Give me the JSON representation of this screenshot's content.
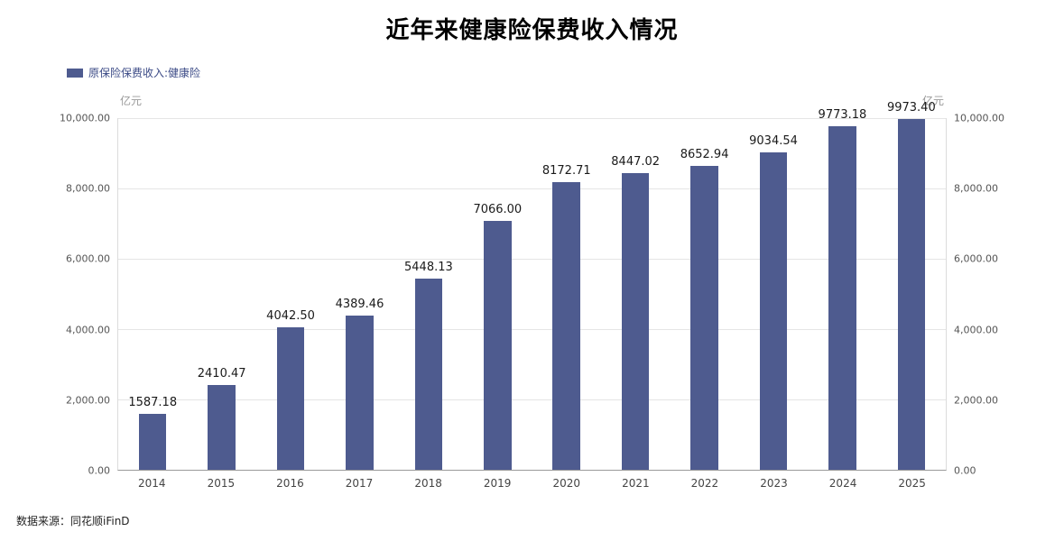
{
  "title": "近年来健康险保费收入情况",
  "legend": {
    "label": "原保险保费收入:健康险",
    "swatch_color": "#4e5b8f"
  },
  "axes": {
    "unit_left": "亿元",
    "unit_right": "亿元"
  },
  "source": "数据来源：同花顺iFinD",
  "chart_data": {
    "type": "bar",
    "title": "近年来健康险保费收入情况",
    "categories": [
      "2014",
      "2015",
      "2016",
      "2017",
      "2018",
      "2019",
      "2020",
      "2021",
      "2022",
      "2023",
      "2024",
      "2025"
    ],
    "values": [
      1587.18,
      2410.47,
      4042.5,
      4389.46,
      5448.13,
      7066.0,
      8172.71,
      8447.02,
      8652.94,
      9034.54,
      9773.18,
      9973.4
    ],
    "data_labels": [
      "1587.18",
      "2410.47",
      "4042.50",
      "4389.46",
      "5448.13",
      "7066.00",
      "8172.71",
      "8447.02",
      "8652.94",
      "9034.54",
      "9773.18",
      "9973.40"
    ],
    "series_name": "原保险保费收入:健康险",
    "xlabel": "",
    "ylabel": "亿元",
    "ylim": [
      0,
      10000
    ],
    "yticks": [
      0,
      2000,
      4000,
      6000,
      8000,
      10000
    ],
    "ytick_labels": [
      "0.00",
      "2,000.00",
      "4,000.00",
      "6,000.00",
      "8,000.00",
      "10,000.00"
    ],
    "bar_color": "#4e5b8f",
    "grid": true,
    "legend_position": "top-left",
    "dual_y_axis": true
  }
}
